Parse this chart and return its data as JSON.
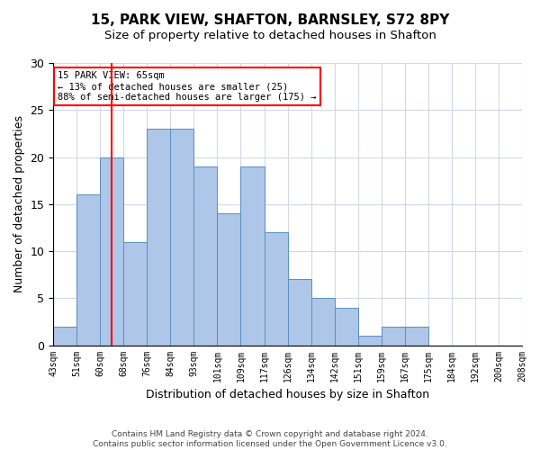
{
  "title1": "15, PARK VIEW, SHAFTON, BARNSLEY, S72 8PY",
  "title2": "Size of property relative to detached houses in Shafton",
  "xlabel": "Distribution of detached houses by size in Shafton",
  "ylabel": "Number of detached properties",
  "footnote1": "Contains HM Land Registry data © Crown copyright and database right 2024.",
  "footnote2": "Contains public sector information licensed under the Open Government Licence v3.0.",
  "bin_labels": [
    "43sqm",
    "51sqm",
    "60sqm",
    "68sqm",
    "76sqm",
    "84sqm",
    "93sqm",
    "101sqm",
    "109sqm",
    "117sqm",
    "126sqm",
    "134sqm",
    "142sqm",
    "151sqm",
    "159sqm",
    "167sqm",
    "175sqm",
    "184sqm",
    "192sqm",
    "200sqm",
    "208sqm"
  ],
  "bar_heights": [
    2,
    16,
    20,
    11,
    23,
    23,
    19,
    14,
    19,
    12,
    7,
    5,
    4,
    1,
    2,
    2,
    0,
    0,
    0,
    0
  ],
  "bar_color": "#aec6e8",
  "bar_edge_color": "#5a8fc2",
  "red_line_x": 2.5,
  "annotation_line1": "15 PARK VIEW: 65sqm",
  "annotation_line2": "← 13% of detached houses are smaller (25)",
  "annotation_line3": "88% of semi-detached houses are larger (175) →",
  "annotation_box_color": "white",
  "annotation_box_edge_color": "red",
  "ylim": [
    0,
    30
  ],
  "yticks": [
    0,
    5,
    10,
    15,
    20,
    25,
    30
  ],
  "grid_color": "#d0d8e8",
  "background_color": "white",
  "title1_fontsize": 11,
  "title2_fontsize": 9.5,
  "xlabel_fontsize": 9,
  "ylabel_fontsize": 9,
  "annotation_fontsize": 7.5,
  "footnote_fontsize": 6.5
}
